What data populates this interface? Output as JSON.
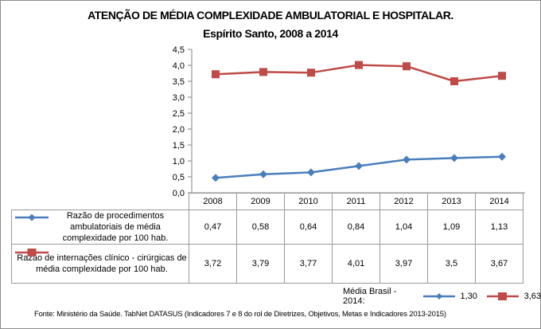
{
  "title_line1": "ATENÇÃO DE MÉDIA COMPLEXIDADE AMBULATORIAL E HOSPITALAR.",
  "title_line2": "Espírito Santo, 2008 a 2014",
  "colors": {
    "series1": "#4a7ebb",
    "series2": "#be4b48",
    "axis": "#868686",
    "grid_border": "#999999"
  },
  "chart_data": {
    "type": "line",
    "title": "ATENÇÃO DE MÉDIA COMPLEXIDADE AMBULATORIAL E HOSPITALAR. Espírito Santo, 2008 a 2014",
    "categories": [
      "2008",
      "2009",
      "2010",
      "2011",
      "2012",
      "2013",
      "2014"
    ],
    "ylim": [
      0,
      4.5
    ],
    "yticks": [
      "0,0",
      "0,5",
      "1,0",
      "1,5",
      "2,0",
      "2,5",
      "3,0",
      "3,5",
      "4,0",
      "4,5"
    ],
    "ytick_values": [
      0,
      0.5,
      1.0,
      1.5,
      2.0,
      2.5,
      3.0,
      3.5,
      4.0,
      4.5
    ],
    "grid": false,
    "legend": "data-table-left",
    "series": [
      {
        "name": "Razão de procedimentos ambulatoriais de média complexidade por 100 hab.",
        "marker": "diamond",
        "color": "#4a7ebb",
        "values": [
          0.47,
          0.58,
          0.64,
          0.84,
          1.04,
          1.09,
          1.13
        ],
        "labels": [
          "0,47",
          "0,58",
          "0,64",
          "0,84",
          "1,04",
          "1,09",
          "1,13"
        ]
      },
      {
        "name": "Razão de internações clínico - cirúrgicas de média complexidade por 100 hab.",
        "marker": "square",
        "color": "#be4b48",
        "values": [
          3.72,
          3.79,
          3.77,
          4.01,
          3.97,
          3.5,
          3.67
        ],
        "labels": [
          "3,72",
          "3,79",
          "3,77",
          "4,01",
          "3,97",
          "3,5",
          "3,67"
        ]
      }
    ]
  },
  "media_brasil": {
    "label": "Média Brasil - 2014:",
    "series1_value": "1,30",
    "series2_value": "3,63"
  },
  "footer": "Fonte: Ministério da Saúde. TabNet DATASUS (Indicadores 7 e 8 do rol de Diretrizes, Objetivos, Metas e Indicadores 2013-2015)"
}
